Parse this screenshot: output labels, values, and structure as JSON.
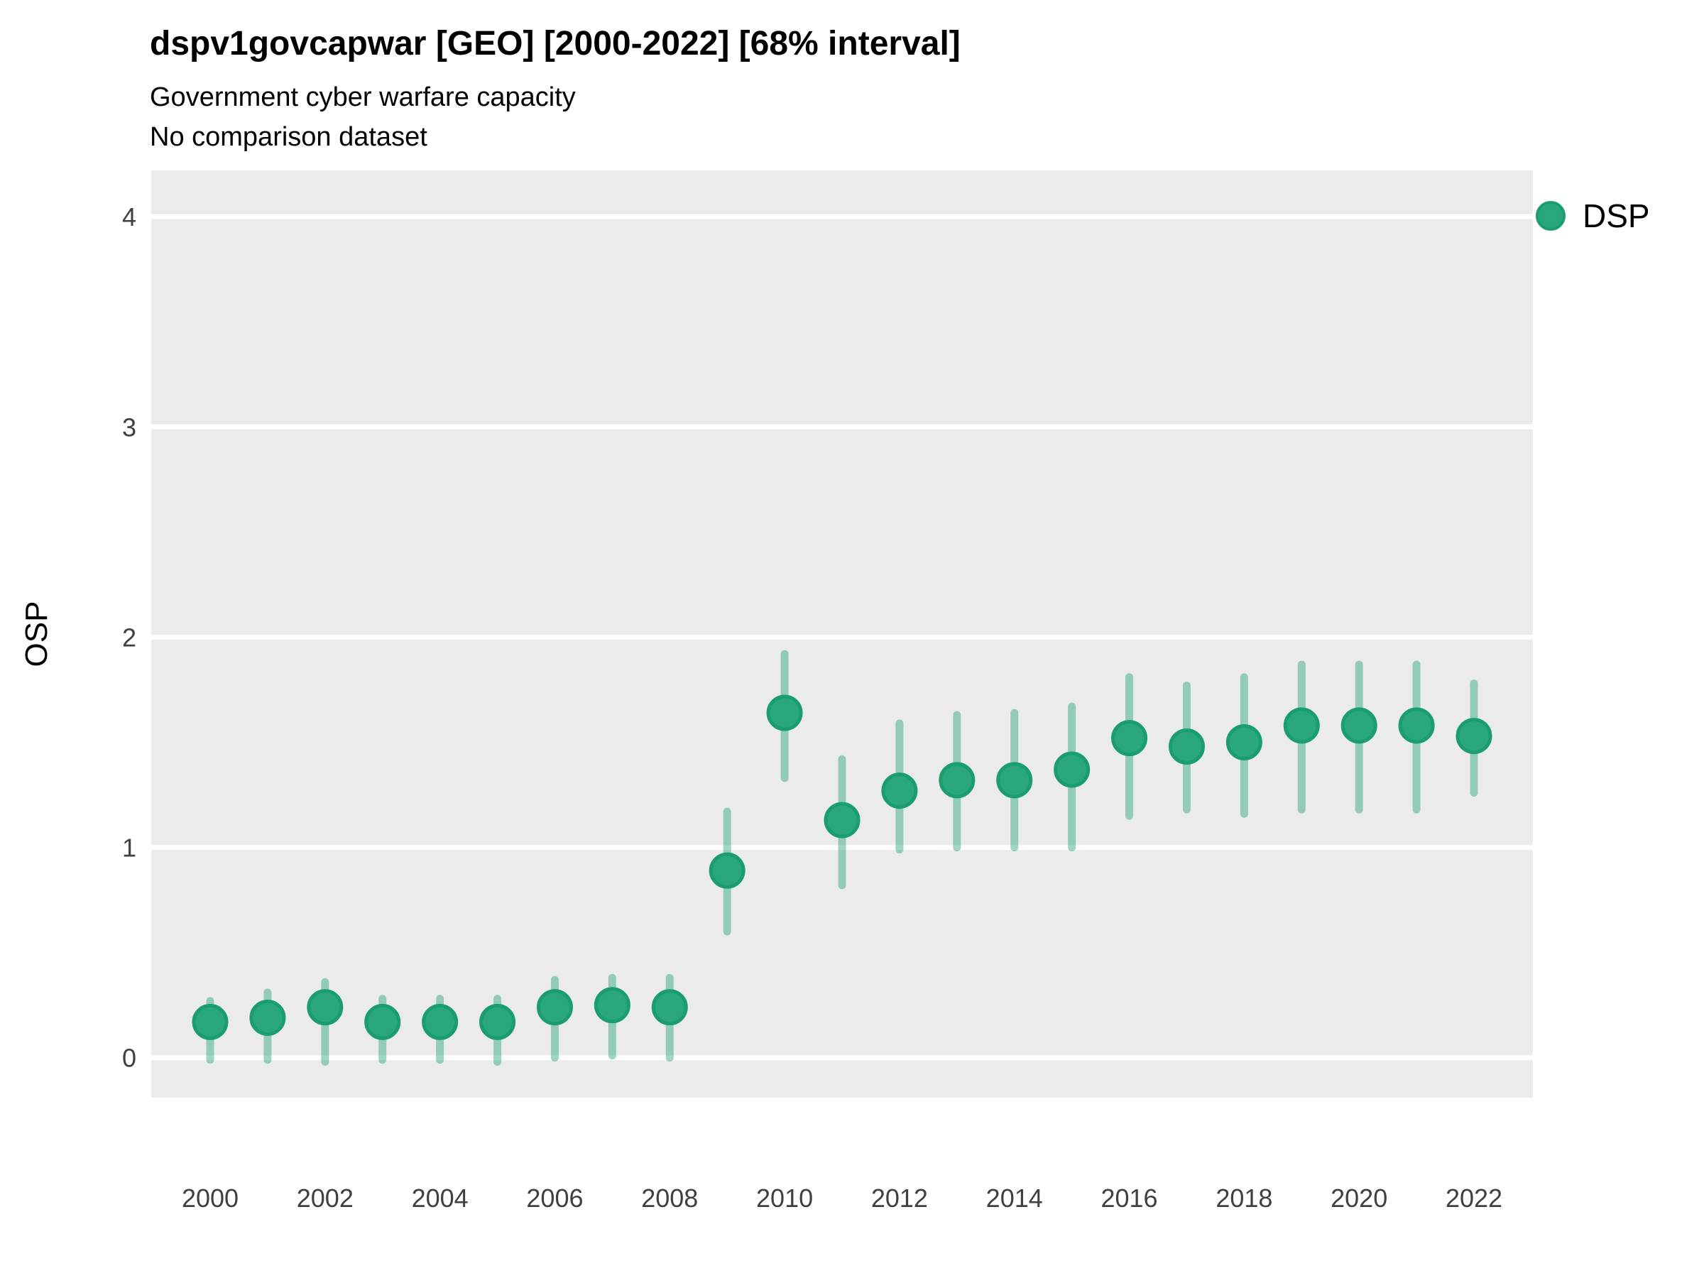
{
  "header": {
    "title": "dspv1govcapwar [GEO] [2000-2022] [68% interval]",
    "subtitle": "Government cyber warfare capacity",
    "note": "No comparison dataset"
  },
  "legend": {
    "position": "right",
    "items": [
      {
        "label": "DSP",
        "color": "#2aa87c"
      }
    ]
  },
  "chart_data": {
    "type": "scatter",
    "title": "dspv1govcapwar [GEO] [2000-2022] [68% interval]",
    "subtitle": "Government cyber warfare capacity",
    "note": "No comparison dataset",
    "interval": "68%",
    "xlabel": "",
    "ylabel": "OSP",
    "x": [
      2000,
      2001,
      2002,
      2003,
      2004,
      2005,
      2006,
      2007,
      2008,
      2009,
      2010,
      2011,
      2012,
      2013,
      2014,
      2015,
      2016,
      2017,
      2018,
      2019,
      2020,
      2021,
      2022
    ],
    "series": [
      {
        "name": "DSP",
        "values": [
          0.17,
          0.19,
          0.24,
          0.17,
          0.17,
          0.17,
          0.24,
          0.25,
          0.24,
          0.89,
          1.64,
          1.13,
          1.27,
          1.32,
          1.32,
          1.37,
          1.52,
          1.48,
          1.5,
          1.58,
          1.58,
          1.58,
          1.53
        ],
        "interval_low": [
          -0.01,
          -0.01,
          -0.02,
          -0.01,
          -0.01,
          -0.02,
          0.0,
          0.01,
          0.0,
          0.6,
          1.33,
          0.82,
          0.99,
          1.0,
          1.0,
          1.0,
          1.15,
          1.18,
          1.16,
          1.18,
          1.18,
          1.18,
          1.26
        ],
        "interval_high": [
          0.27,
          0.31,
          0.36,
          0.28,
          0.28,
          0.28,
          0.37,
          0.38,
          0.38,
          1.17,
          1.92,
          1.42,
          1.59,
          1.63,
          1.64,
          1.67,
          1.81,
          1.77,
          1.81,
          1.87,
          1.87,
          1.87,
          1.78
        ]
      }
    ],
    "ylim": [
      -0.19,
      4.22
    ],
    "yticks": [
      0,
      1,
      2,
      3,
      4
    ],
    "xticks": [
      2000,
      2002,
      2004,
      2006,
      2008,
      2010,
      2012,
      2014,
      2016,
      2018,
      2020,
      2022
    ],
    "grid": "major-horizontal",
    "legend_position": "right",
    "colors": {
      "point_fill": "#2aa87c",
      "point_stroke": "#1a9e6d",
      "interval_stroke": "#2fab7d",
      "interval_opacity": 0.47,
      "panel_background": "#ebebeb",
      "gridline": "#ffffff",
      "tick_label": "#404040",
      "text": "#000000"
    }
  }
}
